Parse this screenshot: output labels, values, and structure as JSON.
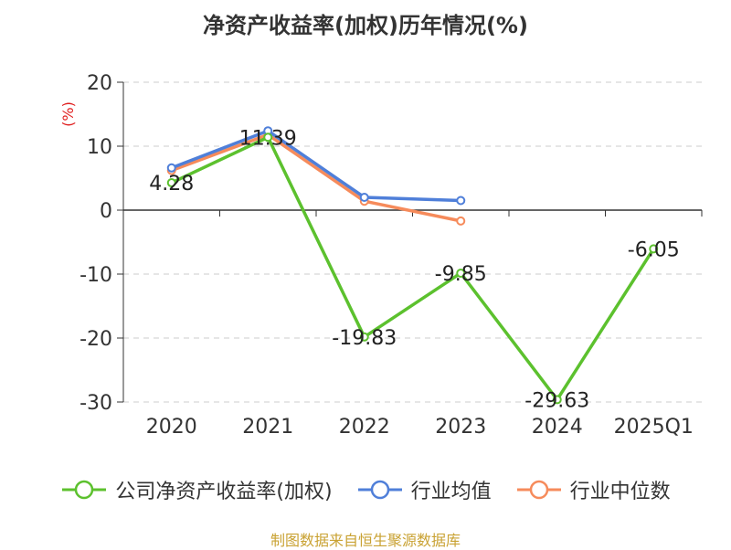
{
  "chart_data": {
    "type": "line",
    "title": "净资产收益率(加权)历年情况(%)",
    "ylabel": "(%)",
    "categories": [
      "2020",
      "2021",
      "2022",
      "2023",
      "2024",
      "2025Q1"
    ],
    "ylim": [
      -30,
      20
    ],
    "yticks": [
      20,
      10,
      0,
      -10,
      -20,
      -30
    ],
    "grid": true,
    "legend_position": "bottom",
    "series": [
      {
        "name": "公司净资产收益率(加权)",
        "color": "#5cc12e",
        "values": [
          4.28,
          11.39,
          -19.83,
          -9.85,
          -29.63,
          -6.05
        ],
        "labels": [
          "4.28",
          "11.39",
          "-19.83",
          "-9.85",
          "-29.63",
          "-6.05"
        ]
      },
      {
        "name": "行业均值",
        "color": "#4f7fd9",
        "values": [
          6.6,
          12.4,
          2.0,
          1.5,
          null,
          null
        ]
      },
      {
        "name": "行业中位数",
        "color": "#f68b5b",
        "values": [
          6.2,
          11.8,
          1.4,
          -1.7,
          null,
          null
        ]
      }
    ]
  },
  "source": "制图数据来自恒生聚源数据库"
}
